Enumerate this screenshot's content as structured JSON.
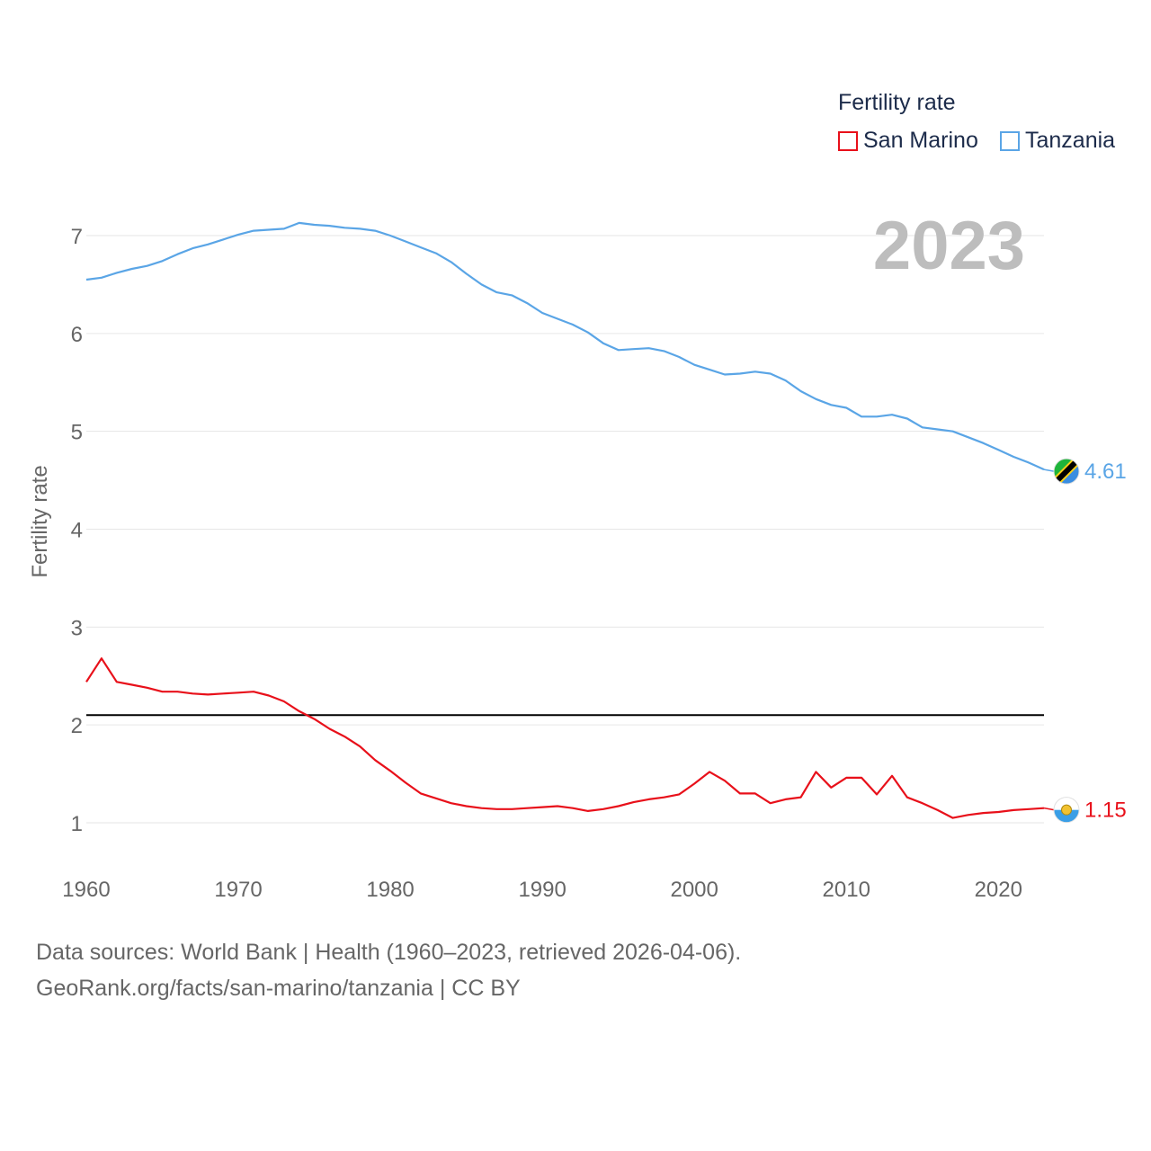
{
  "legend": {
    "title": "Fertility rate",
    "items": [
      {
        "label": "San Marino",
        "color": "#e8101a"
      },
      {
        "label": "Tanzania",
        "color": "#5aa5e6"
      }
    ]
  },
  "source": {
    "line1": "Data sources: World Bank | Health (1960–2023, retrieved 2026-04-06).",
    "line2": "GeoRank.org/facts/san-marino/tanzania | CC BY"
  },
  "chart_data": {
    "type": "line",
    "title": "Fertility rate",
    "year_label": "2023",
    "xlabel": "",
    "ylabel": "Fertility rate",
    "xlim": [
      1960,
      2023
    ],
    "ylim": [
      0.5,
      7.5
    ],
    "xticks": [
      1960,
      1970,
      1980,
      1990,
      2000,
      2010,
      2020
    ],
    "yticks": [
      1,
      2,
      3,
      4,
      5,
      6,
      7
    ],
    "grid": true,
    "reference_line": {
      "y": 2.1,
      "color": "#000000"
    },
    "x": [
      1960,
      1961,
      1962,
      1963,
      1964,
      1965,
      1966,
      1967,
      1968,
      1969,
      1970,
      1971,
      1972,
      1973,
      1974,
      1975,
      1976,
      1977,
      1978,
      1979,
      1980,
      1981,
      1982,
      1983,
      1984,
      1985,
      1986,
      1987,
      1988,
      1989,
      1990,
      1991,
      1992,
      1993,
      1994,
      1995,
      1996,
      1997,
      1998,
      1999,
      2000,
      2001,
      2002,
      2003,
      2004,
      2005,
      2006,
      2007,
      2008,
      2009,
      2010,
      2011,
      2012,
      2013,
      2014,
      2015,
      2016,
      2017,
      2018,
      2019,
      2020,
      2021,
      2022,
      2023
    ],
    "series": [
      {
        "name": "Tanzania",
        "color": "#5aa5e6",
        "end_label": "4.61",
        "marker": "tanzania-flag",
        "values": [
          6.55,
          6.57,
          6.62,
          6.66,
          6.69,
          6.74,
          6.81,
          6.87,
          6.91,
          6.96,
          7.01,
          7.05,
          7.06,
          7.07,
          7.13,
          7.11,
          7.1,
          7.08,
          7.07,
          7.05,
          7.0,
          6.94,
          6.88,
          6.82,
          6.73,
          6.61,
          6.5,
          6.42,
          6.39,
          6.31,
          6.21,
          6.15,
          6.09,
          6.01,
          5.9,
          5.83,
          5.84,
          5.85,
          5.82,
          5.76,
          5.68,
          5.63,
          5.58,
          5.59,
          5.61,
          5.59,
          5.52,
          5.41,
          5.33,
          5.27,
          5.24,
          5.15,
          5.15,
          5.17,
          5.13,
          5.04,
          5.02,
          5.0,
          4.94,
          4.88,
          4.81,
          4.74,
          4.68,
          4.61
        ]
      },
      {
        "name": "San Marino",
        "color": "#e8101a",
        "end_label": "1.15",
        "marker": "san-marino-flag",
        "values": [
          2.44,
          2.68,
          2.44,
          2.41,
          2.38,
          2.34,
          2.34,
          2.32,
          2.31,
          2.32,
          2.33,
          2.34,
          2.3,
          2.24,
          2.14,
          2.06,
          1.96,
          1.88,
          1.78,
          1.64,
          1.53,
          1.41,
          1.3,
          1.25,
          1.2,
          1.17,
          1.15,
          1.14,
          1.14,
          1.15,
          1.16,
          1.17,
          1.15,
          1.12,
          1.14,
          1.17,
          1.21,
          1.24,
          1.26,
          1.29,
          1.4,
          1.52,
          1.43,
          1.3,
          1.3,
          1.2,
          1.24,
          1.26,
          1.52,
          1.36,
          1.46,
          1.46,
          1.29,
          1.48,
          1.26,
          1.2,
          1.13,
          1.05,
          1.08,
          1.1,
          1.11,
          1.13,
          1.14,
          1.15
        ]
      }
    ]
  }
}
